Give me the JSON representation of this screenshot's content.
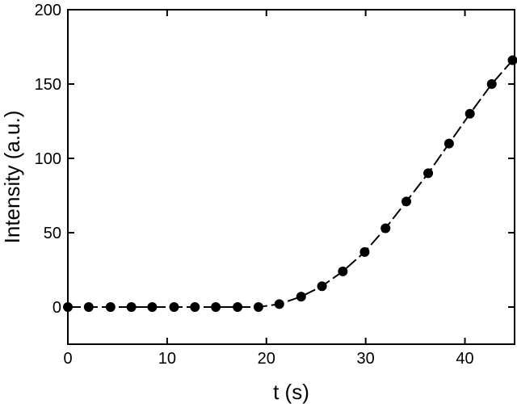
{
  "chart_data": {
    "type": "scatter",
    "title": "",
    "xlabel": "t (s)",
    "ylabel": "Intensity (a.u.)",
    "xlim": [
      0,
      45
    ],
    "ylim": [
      -25,
      200
    ],
    "x_ticks": [
      0,
      10,
      20,
      30,
      40
    ],
    "y_ticks": [
      0,
      50,
      100,
      150,
      200
    ],
    "x_tick_labels": [
      "0",
      "10",
      "20",
      "30",
      "40"
    ],
    "y_tick_labels": [
      "0",
      "50",
      "100",
      "150",
      "200"
    ],
    "grid": false,
    "legend": "none",
    "marker_color": "#000000",
    "series": [
      {
        "x": [
          0.0,
          2.1,
          4.3,
          6.4,
          8.5,
          10.7,
          12.8,
          14.9,
          17.1,
          19.2,
          21.3,
          23.5,
          25.6,
          27.7,
          29.9,
          32.0,
          34.1,
          36.3,
          38.4,
          40.5,
          42.7,
          44.8
        ],
        "y": [
          0,
          0,
          0,
          0,
          0,
          0,
          0,
          0,
          0,
          0,
          2,
          7,
          14,
          24,
          37,
          53,
          71,
          90,
          110,
          130,
          150,
          166
        ],
        "line": "dashed fit"
      }
    ]
  }
}
